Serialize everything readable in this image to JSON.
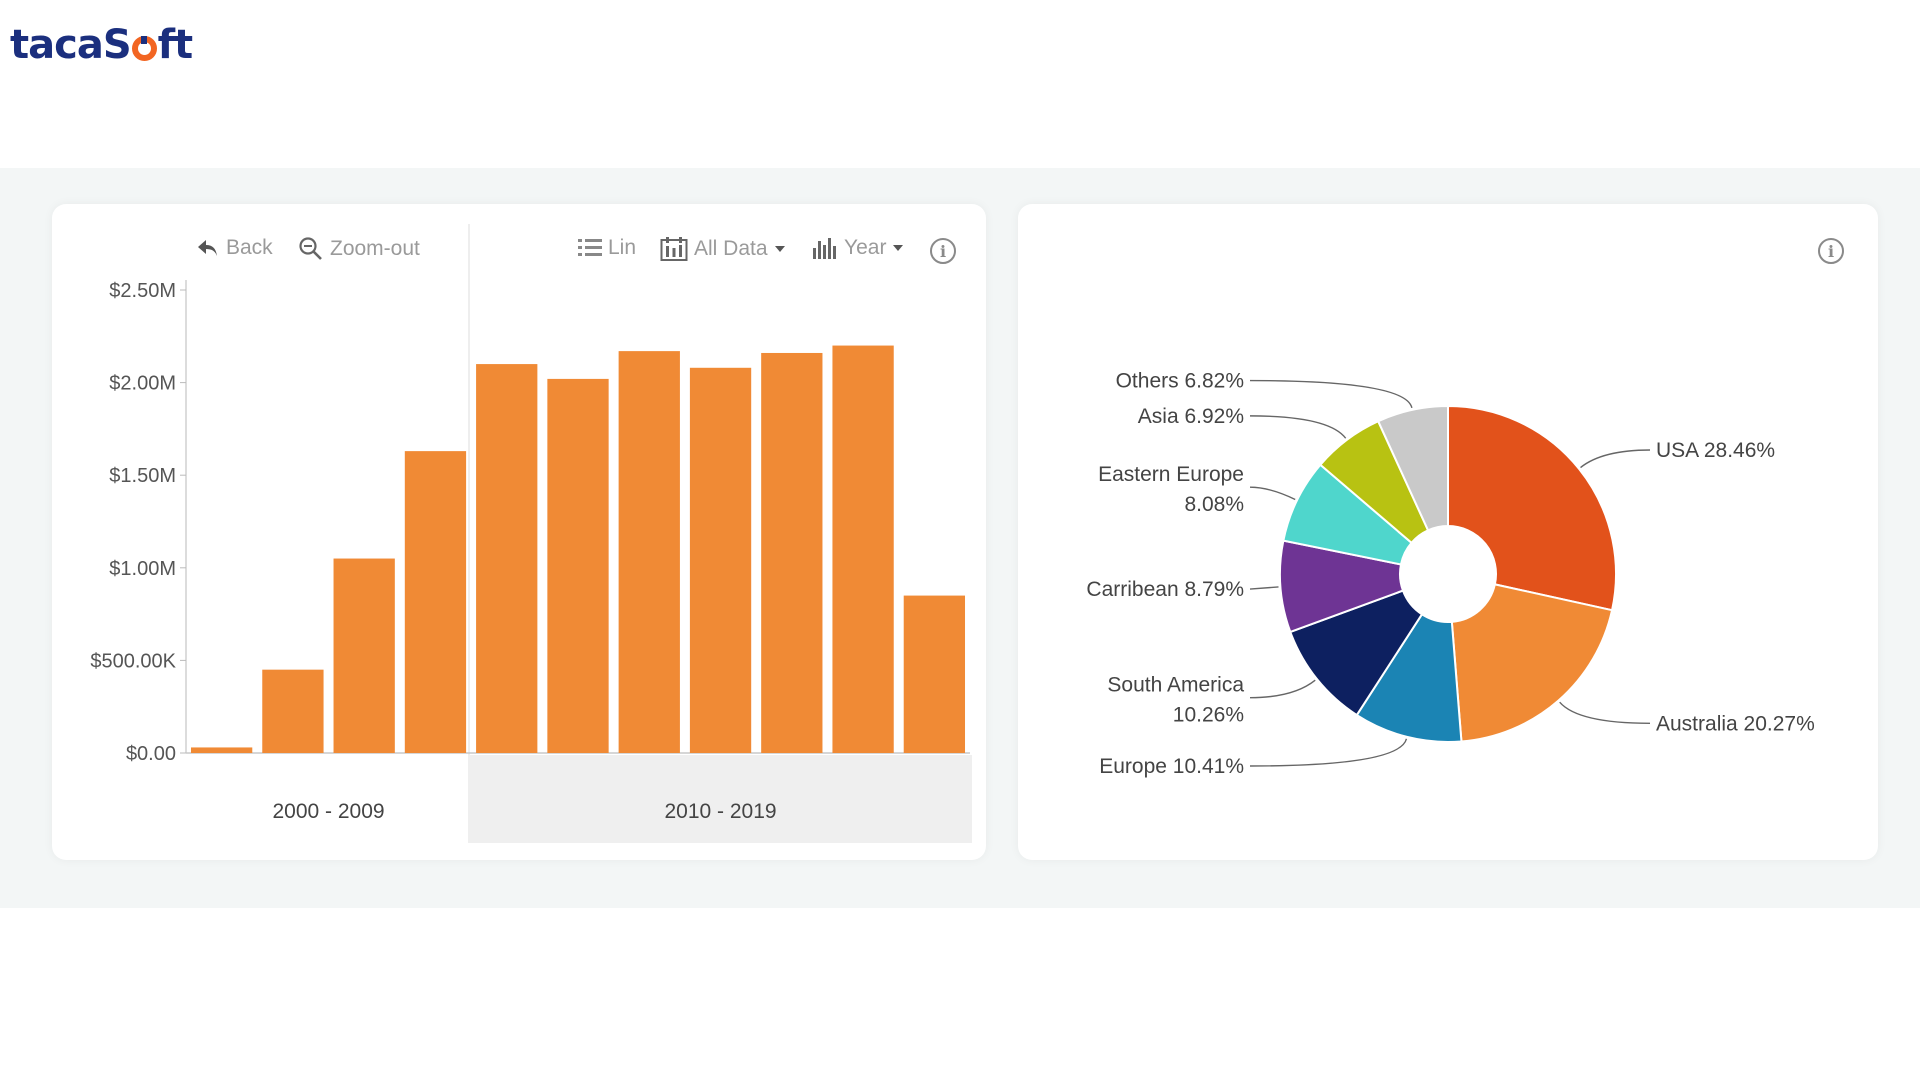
{
  "brand": {
    "name_left": "tacaS",
    "name_right": "ft"
  },
  "toolbar": {
    "back_label": "Back",
    "zoomout_label": "Zoom-out",
    "lin_label": "Lin",
    "alldata_label": "All Data",
    "year_label": "Year",
    "info_glyph": "i"
  },
  "colors": {
    "bar": "#f08a35",
    "usa": "#e2521b",
    "australia": "#f08a35",
    "europe": "#1b84b4",
    "south_america": "#0d2060",
    "carribean": "#6e3494",
    "eastern_europe": "#4fd6cc",
    "asia": "#b8c212",
    "others": "#c9c9c9"
  },
  "chart_data": [
    {
      "type": "bar",
      "y_tick_labels": [
        "$0.00",
        "$500.00K",
        "$1.00M",
        "$1.50M",
        "$2.00M",
        "$2.50M"
      ],
      "ylim": [
        0,
        2500000
      ],
      "groups": [
        {
          "label": "2000 - 2009",
          "bar_count": 4
        },
        {
          "label": "2010 - 2019",
          "bar_count": 7
        }
      ],
      "values": [
        30000,
        450000,
        1050000,
        1630000,
        2100000,
        2020000,
        2170000,
        2080000,
        2160000,
        2200000,
        850000
      ],
      "grid": false
    },
    {
      "type": "pie",
      "slices": [
        {
          "name": "USA",
          "label": "USA 28.46%",
          "value": 28.46,
          "color": "#e2521b"
        },
        {
          "name": "Australia",
          "label": "Australia 20.27%",
          "value": 20.27,
          "color": "#f08a35"
        },
        {
          "name": "Europe",
          "label": "Europe 10.41%",
          "value": 10.41,
          "color": "#1b84b4"
        },
        {
          "name": "South America",
          "label": "South America|10.26%",
          "value": 10.26,
          "color": "#0d2060"
        },
        {
          "name": "Carribean",
          "label": "Carribean 8.79%",
          "value": 8.79,
          "color": "#6e3494"
        },
        {
          "name": "Eastern Europe",
          "label": "Eastern Europe|8.08%",
          "value": 8.08,
          "color": "#4fd6cc"
        },
        {
          "name": "Asia",
          "label": "Asia 6.92%",
          "value": 6.92,
          "color": "#b8c212"
        },
        {
          "name": "Others",
          "label": "Others 6.82%",
          "value": 6.82,
          "color": "#c9c9c9"
        }
      ]
    }
  ]
}
